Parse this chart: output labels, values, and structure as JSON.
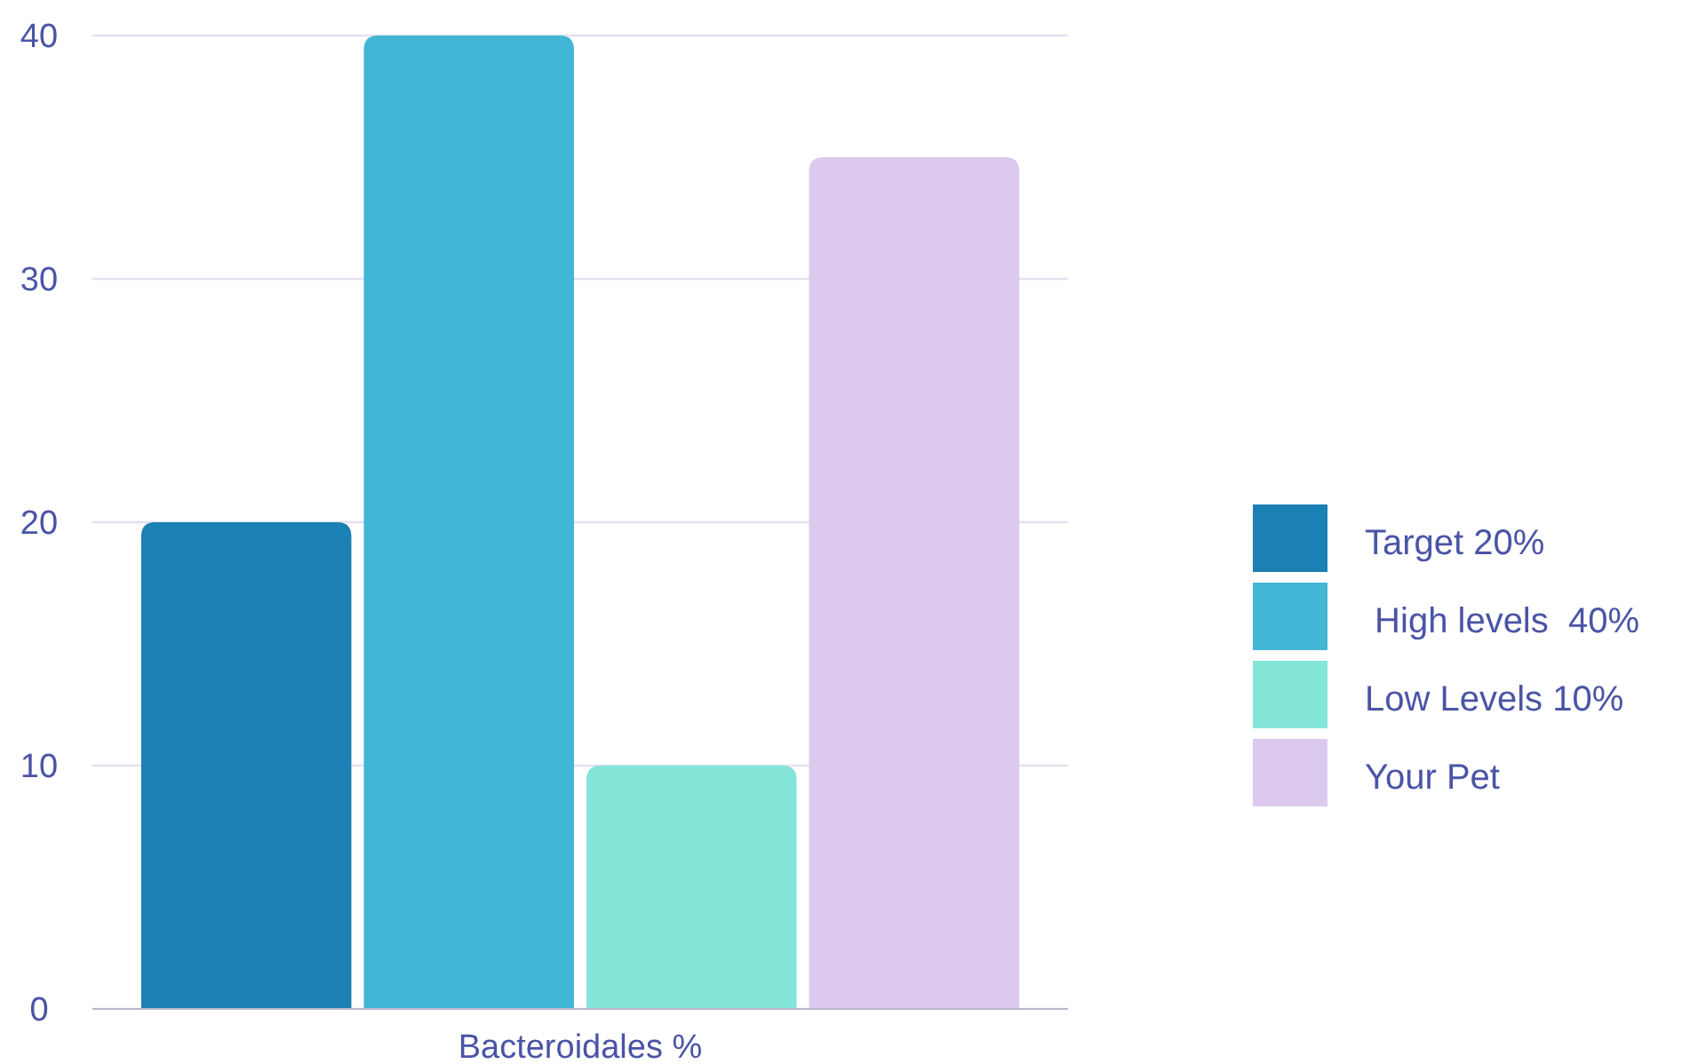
{
  "chart_data": {
    "type": "bar",
    "categories": [
      "Bacteroidales %"
    ],
    "series": [
      {
        "name": "Target 20%",
        "color": "#1b80b4",
        "values": [
          20
        ]
      },
      {
        "name": " High levels  40%",
        "color": "#41b6d5",
        "values": [
          40
        ]
      },
      {
        "name": "Low Levels 10%",
        "color": "#84e5d9",
        "values": [
          10
        ]
      },
      {
        "name": "Your Pet",
        "color": "#dbc9ee",
        "values": [
          35
        ]
      }
    ],
    "ylim": [
      0,
      40
    ],
    "yticks": [
      0,
      10,
      20,
      30,
      40
    ],
    "grid": "y",
    "legend": "right"
  }
}
